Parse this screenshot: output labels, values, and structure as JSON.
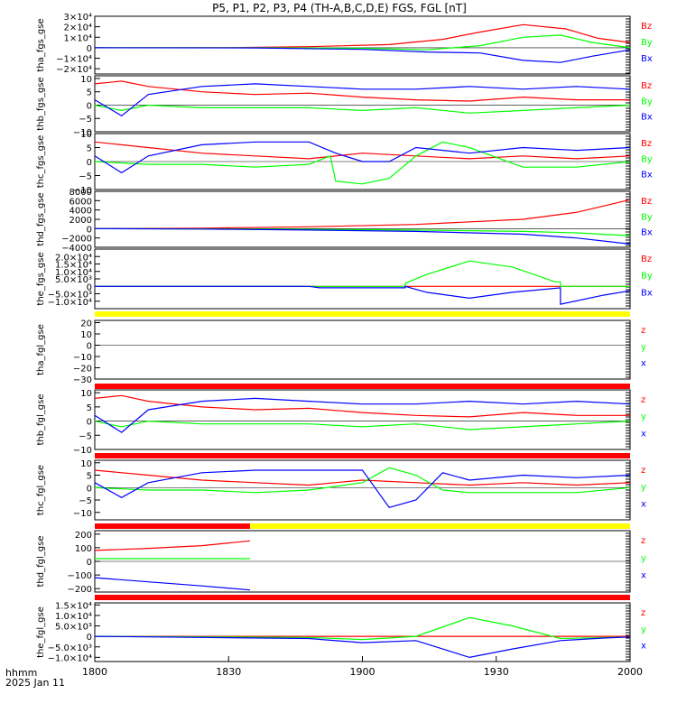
{
  "title": "P5, P1, P2, P3, P4 (TH-A,B,C,D,E) FGS, FGL [nT]",
  "footer": {
    "axis_label": "hhmm",
    "date": "2025 Jan 11"
  },
  "x_ticks": [
    "1800",
    "1830",
    "1900",
    "1930",
    "2000"
  ],
  "colors": {
    "red": "#ff0000",
    "green": "#00ff00",
    "blue": "#0000ff",
    "yellow": "#ffff00",
    "axis": "#000000"
  },
  "chart_data": [
    {
      "type": "line",
      "name": "tha_fgs_gse",
      "ylabel": "tha_fgs_gse",
      "ylim": [
        -25000,
        30000
      ],
      "yticks": [
        {
          "v": 30000,
          "label": "3×10⁴"
        },
        {
          "v": 20000,
          "label": "2×10⁴"
        },
        {
          "v": 10000,
          "label": "1×10⁴"
        },
        {
          "v": 0,
          "label": "0"
        },
        {
          "v": -10000,
          "label": "−1×10⁴"
        },
        {
          "v": -20000,
          "label": "−2×10⁴"
        }
      ],
      "legend": [
        "Bz",
        "By",
        "Bx"
      ],
      "series": [
        {
          "name": "Bz",
          "color": "red",
          "x": [
            0,
            0.25,
            0.4,
            0.55,
            0.65,
            0.72,
            0.8,
            0.88,
            0.94,
            1.0
          ],
          "y": [
            0,
            200,
            1000,
            3000,
            8000,
            15000,
            22000,
            18000,
            9000,
            5000
          ]
        },
        {
          "name": "By",
          "color": "green",
          "x": [
            0,
            0.3,
            0.5,
            0.62,
            0.72,
            0.8,
            0.87,
            0.93,
            1.0
          ],
          "y": [
            0,
            0,
            -500,
            -2000,
            2000,
            10000,
            12000,
            5000,
            0
          ]
        },
        {
          "name": "Bx",
          "color": "blue",
          "x": [
            0,
            0.3,
            0.5,
            0.62,
            0.72,
            0.8,
            0.87,
            0.93,
            1.0
          ],
          "y": [
            0,
            -200,
            -1500,
            -4000,
            -5000,
            -12000,
            -14000,
            -8000,
            -2000
          ]
        }
      ]
    },
    {
      "type": "line",
      "name": "thb_fgs_gse",
      "ylabel": "thb_fgs_gse",
      "ylim": [
        -10,
        11
      ],
      "yticks": [
        {
          "v": 10,
          "label": "10"
        },
        {
          "v": 5,
          "label": "5"
        },
        {
          "v": 0,
          "label": "0"
        },
        {
          "v": -5,
          "label": "−5"
        },
        {
          "v": -10,
          "label": "−10"
        }
      ],
      "legend": [
        "Bz",
        "By",
        "Bx"
      ],
      "series": [
        {
          "name": "Bz",
          "color": "red",
          "x": [
            0,
            0.05,
            0.1,
            0.2,
            0.3,
            0.4,
            0.5,
            0.6,
            0.7,
            0.8,
            0.9,
            1.0
          ],
          "y": [
            8,
            9,
            7,
            5,
            4,
            4.5,
            3,
            2,
            1.5,
            3,
            2,
            2
          ]
        },
        {
          "name": "By",
          "color": "green",
          "x": [
            0,
            0.05,
            0.1,
            0.2,
            0.3,
            0.4,
            0.5,
            0.6,
            0.7,
            0.8,
            0.9,
            1.0
          ],
          "y": [
            0,
            -2,
            0,
            -1,
            -1,
            -1,
            -2,
            -1,
            -3,
            -2,
            -1,
            0
          ]
        },
        {
          "name": "Bx",
          "color": "blue",
          "x": [
            0,
            0.05,
            0.1,
            0.2,
            0.3,
            0.4,
            0.5,
            0.6,
            0.7,
            0.8,
            0.9,
            1.0
          ],
          "y": [
            2,
            -4,
            4,
            7,
            8,
            7,
            6,
            6,
            7,
            6,
            7,
            6
          ]
        }
      ]
    },
    {
      "type": "line",
      "name": "thc_fgs_gse",
      "ylabel": "thc_fgs_gse",
      "ylim": [
        -10,
        10
      ],
      "yticks": [
        {
          "v": 10,
          "label": "10"
        },
        {
          "v": 5,
          "label": "5"
        },
        {
          "v": 0,
          "label": "0"
        },
        {
          "v": -5,
          "label": "−5"
        },
        {
          "v": -10,
          "label": "−10"
        }
      ],
      "legend": [
        "Bz",
        "By",
        "Bx"
      ],
      "series": [
        {
          "name": "Bz",
          "color": "red",
          "x": [
            0,
            0.1,
            0.2,
            0.3,
            0.4,
            0.5,
            0.6,
            0.7,
            0.8,
            0.9,
            1.0
          ],
          "y": [
            7,
            5,
            3,
            2,
            1,
            3,
            2,
            1,
            2,
            1,
            2
          ]
        },
        {
          "name": "By",
          "color": "green",
          "x": [
            0,
            0.1,
            0.2,
            0.3,
            0.4,
            0.44,
            0.45,
            0.5,
            0.55,
            0.6,
            0.65,
            0.7,
            0.8,
            0.9,
            1.0
          ],
          "y": [
            0,
            -1,
            -1,
            -2,
            -1,
            2,
            -7,
            -8,
            -6,
            2,
            7,
            5,
            -2,
            -2,
            0
          ]
        },
        {
          "name": "Bx",
          "color": "blue",
          "x": [
            0,
            0.05,
            0.1,
            0.2,
            0.3,
            0.4,
            0.45,
            0.5,
            0.55,
            0.6,
            0.7,
            0.8,
            0.9,
            1.0
          ],
          "y": [
            2,
            -4,
            2,
            6,
            7,
            7,
            3,
            0,
            0,
            5,
            3,
            5,
            4,
            5
          ]
        }
      ]
    },
    {
      "type": "line",
      "name": "thd_fgs_gse",
      "ylabel": "thd_fgs_gse",
      "ylim": [
        -4000,
        8000
      ],
      "yticks": [
        {
          "v": 8000,
          "label": "8000"
        },
        {
          "v": 6000,
          "label": "6000"
        },
        {
          "v": 4000,
          "label": "4000"
        },
        {
          "v": 2000,
          "label": "2000"
        },
        {
          "v": 0,
          "label": "0"
        },
        {
          "v": -2000,
          "label": "−2000"
        },
        {
          "v": -4000,
          "label": "−4000"
        }
      ],
      "legend": [
        "Bz",
        "By",
        "Bx"
      ],
      "series": [
        {
          "name": "Bz",
          "color": "red",
          "x": [
            0,
            0.2,
            0.4,
            0.6,
            0.8,
            0.9,
            1.0
          ],
          "y": [
            0,
            100,
            400,
            900,
            2000,
            3500,
            6200
          ]
        },
        {
          "name": "By",
          "color": "green",
          "x": [
            0,
            0.2,
            0.4,
            0.6,
            0.8,
            0.9,
            1.0
          ],
          "y": [
            0,
            -50,
            -150,
            -300,
            -600,
            -900,
            -1500
          ]
        },
        {
          "name": "Bx",
          "color": "blue",
          "x": [
            0,
            0.2,
            0.4,
            0.6,
            0.8,
            0.9,
            1.0
          ],
          "y": [
            0,
            -100,
            -300,
            -600,
            -1200,
            -2000,
            -3300
          ]
        }
      ]
    },
    {
      "type": "line",
      "name": "the_fgs_gse",
      "ylabel": "the_fgs_gse",
      "ylim": [
        -15000,
        25000
      ],
      "yticks": [
        {
          "v": 20000,
          "label": "2.0×10⁴"
        },
        {
          "v": 15000,
          "label": "1.5×10⁴"
        },
        {
          "v": 10000,
          "label": "1.0×10⁴"
        },
        {
          "v": 5000,
          "label": "5.0×10³"
        },
        {
          "v": 0,
          "label": "0"
        },
        {
          "v": -5000,
          "label": "−5.0×10³"
        },
        {
          "v": -10000,
          "label": "−1.0×10⁴"
        }
      ],
      "legend": [
        "Bz",
        "By",
        "Bx"
      ],
      "series": [
        {
          "name": "Bz",
          "color": "red",
          "x": [
            0,
            1.0
          ],
          "y": [
            0,
            0
          ]
        },
        {
          "name": "By",
          "color": "green",
          "x": [
            0,
            0.4,
            0.58,
            0.58,
            0.62,
            0.7,
            0.78,
            0.86,
            0.87,
            0.87,
            0.95,
            1.0
          ],
          "y": [
            0,
            0,
            0,
            2000,
            8000,
            17000,
            13000,
            3000,
            3000,
            0,
            0,
            0
          ]
        },
        {
          "name": "Bx",
          "color": "blue",
          "x": [
            0,
            0.4,
            0.42,
            0.58,
            0.58,
            0.62,
            0.7,
            0.78,
            0.87,
            0.87,
            0.95,
            1.0
          ],
          "y": [
            0,
            0,
            -1000,
            -1000,
            0,
            -4000,
            -8000,
            -4000,
            -1000,
            -12000,
            -6000,
            -3000
          ]
        }
      ]
    },
    {
      "type": "line",
      "name": "tha_fgl_gse",
      "ylabel": "tha_fgl_gse",
      "ylim": [
        -30,
        22
      ],
      "yticks": [
        {
          "v": 20,
          "label": "20"
        },
        {
          "v": 10,
          "label": "10"
        },
        {
          "v": 0,
          "label": "0"
        },
        {
          "v": -10,
          "label": "−10"
        },
        {
          "v": -20,
          "label": "−20"
        },
        {
          "v": -30,
          "label": "−30"
        }
      ],
      "legend": [
        "z",
        "y",
        "x"
      ],
      "bar": [
        {
          "from": 0,
          "to": 1,
          "color": "yellow"
        }
      ],
      "series": []
    },
    {
      "type": "line",
      "name": "thb_fgl_gse",
      "ylabel": "thb_fgl_gse",
      "ylim": [
        -10,
        11
      ],
      "yticks": [
        {
          "v": 10,
          "label": "10"
        },
        {
          "v": 5,
          "label": "5"
        },
        {
          "v": 0,
          "label": "0"
        },
        {
          "v": -5,
          "label": "−5"
        },
        {
          "v": -10,
          "label": "−10"
        }
      ],
      "legend": [
        "z",
        "y",
        "x"
      ],
      "bar": [
        {
          "from": 0,
          "to": 1,
          "color": "red"
        }
      ],
      "series": [
        {
          "name": "z",
          "color": "red",
          "x": [
            0,
            0.05,
            0.1,
            0.2,
            0.3,
            0.4,
            0.5,
            0.6,
            0.7,
            0.8,
            0.9,
            1.0
          ],
          "y": [
            8,
            9,
            7,
            5,
            4,
            4.5,
            3,
            2,
            1.5,
            3,
            2,
            2
          ]
        },
        {
          "name": "y",
          "color": "green",
          "x": [
            0,
            0.05,
            0.1,
            0.2,
            0.3,
            0.4,
            0.5,
            0.6,
            0.7,
            0.8,
            0.9,
            1.0
          ],
          "y": [
            0,
            -2,
            0,
            -1,
            -1,
            -1,
            -2,
            -1,
            -3,
            -2,
            -1,
            0
          ]
        },
        {
          "name": "x",
          "color": "blue",
          "x": [
            0,
            0.05,
            0.1,
            0.2,
            0.3,
            0.4,
            0.5,
            0.6,
            0.7,
            0.8,
            0.9,
            1.0
          ],
          "y": [
            2,
            -4,
            4,
            7,
            8,
            7,
            6,
            6,
            7,
            6,
            7,
            6
          ]
        }
      ]
    },
    {
      "type": "line",
      "name": "thc_fgl_gse",
      "ylabel": "thc_fgl_gse",
      "ylim": [
        -13,
        11
      ],
      "yticks": [
        {
          "v": 10,
          "label": "10"
        },
        {
          "v": 5,
          "label": "5"
        },
        {
          "v": 0,
          "label": "0"
        },
        {
          "v": -5,
          "label": "−5"
        },
        {
          "v": -10,
          "label": "−10"
        }
      ],
      "legend": [
        "z",
        "y",
        "x"
      ],
      "bar": [
        {
          "from": 0,
          "to": 1,
          "color": "red"
        }
      ],
      "series": [
        {
          "name": "z",
          "color": "red",
          "x": [
            0,
            0.1,
            0.2,
            0.3,
            0.4,
            0.5,
            0.6,
            0.7,
            0.8,
            0.9,
            1.0
          ],
          "y": [
            7,
            5,
            3,
            2,
            1,
            3,
            2,
            1,
            2,
            1,
            2
          ]
        },
        {
          "name": "y",
          "color": "green",
          "x": [
            0,
            0.1,
            0.2,
            0.3,
            0.4,
            0.5,
            0.55,
            0.6,
            0.65,
            0.7,
            0.8,
            0.9,
            1.0
          ],
          "y": [
            0,
            -1,
            -1,
            -2,
            -1,
            2,
            8,
            5,
            -1,
            -2,
            -2,
            -2,
            0
          ]
        },
        {
          "name": "x",
          "color": "blue",
          "x": [
            0,
            0.05,
            0.1,
            0.2,
            0.3,
            0.4,
            0.5,
            0.55,
            0.6,
            0.65,
            0.7,
            0.8,
            0.9,
            1.0
          ],
          "y": [
            2,
            -4,
            2,
            6,
            7,
            7,
            7,
            -8,
            -5,
            6,
            3,
            5,
            4,
            5
          ]
        }
      ]
    },
    {
      "type": "line",
      "name": "thd_fgl_gse",
      "ylabel": "thd_fgl_gse",
      "ylim": [
        -225,
        225
      ],
      "yticks": [
        {
          "v": 200,
          "label": "200"
        },
        {
          "v": 100,
          "label": "100"
        },
        {
          "v": 0,
          "label": "0"
        },
        {
          "v": -100,
          "label": "−100"
        },
        {
          "v": -200,
          "label": "−200"
        }
      ],
      "legend": [
        "z",
        "y",
        "x"
      ],
      "bar": [
        {
          "from": 0,
          "to": 0.29,
          "color": "red"
        },
        {
          "from": 0.29,
          "to": 1,
          "color": "yellow"
        }
      ],
      "series": [
        {
          "name": "z",
          "color": "red",
          "x": [
            0,
            0.1,
            0.2,
            0.29
          ],
          "y": [
            80,
            95,
            115,
            150
          ]
        },
        {
          "name": "y",
          "color": "green",
          "x": [
            0,
            0.29
          ],
          "y": [
            20,
            20
          ]
        },
        {
          "name": "x",
          "color": "blue",
          "x": [
            0,
            0.1,
            0.2,
            0.29
          ],
          "y": [
            -120,
            -150,
            -180,
            -210
          ]
        }
      ]
    },
    {
      "type": "line",
      "name": "the_fgl_gse",
      "ylabel": "the_fgl_gse",
      "ylim": [
        -12000,
        16000
      ],
      "yticks": [
        {
          "v": 15000,
          "label": "1.5×10⁴"
        },
        {
          "v": 10000,
          "label": "1.0×10⁴"
        },
        {
          "v": 5000,
          "label": "5.0×10³"
        },
        {
          "v": 0,
          "label": "0"
        },
        {
          "v": -5000,
          "label": "−5.0×10³"
        },
        {
          "v": -10000,
          "label": "−1.0×10⁴"
        }
      ],
      "legend": [
        "z",
        "y",
        "x"
      ],
      "bar": [
        {
          "from": 0,
          "to": 1,
          "color": "red"
        }
      ],
      "series": [
        {
          "name": "z",
          "color": "red",
          "x": [
            0,
            1.0
          ],
          "y": [
            0,
            0
          ]
        },
        {
          "name": "y",
          "color": "green",
          "x": [
            0,
            0.4,
            0.5,
            0.6,
            0.7,
            0.78,
            0.87,
            0.95,
            1.0
          ],
          "y": [
            0,
            -500,
            -1500,
            0,
            9000,
            5000,
            -1000,
            -600,
            -300
          ]
        },
        {
          "name": "x",
          "color": "blue",
          "x": [
            0,
            0.4,
            0.5,
            0.6,
            0.7,
            0.78,
            0.87,
            0.95,
            1.0
          ],
          "y": [
            0,
            -1000,
            -3000,
            -2000,
            -10000,
            -6000,
            -2000,
            -800,
            -300
          ]
        }
      ]
    }
  ]
}
